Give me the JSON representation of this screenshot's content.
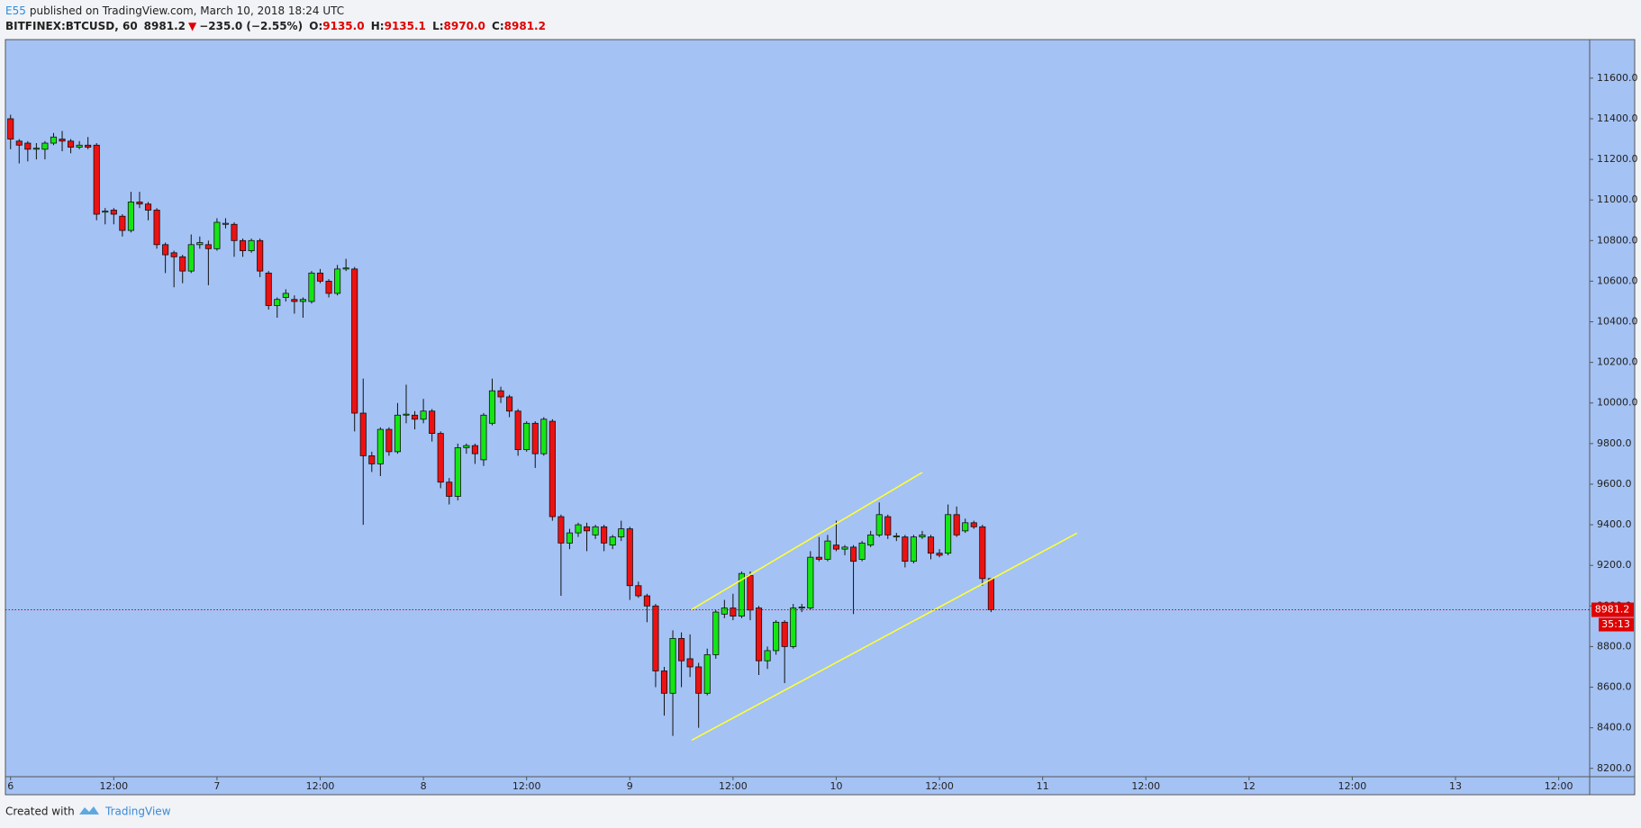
{
  "header": {
    "author": "E55",
    "published": "published on TradingView.com, March 10, 2018 18:24 UTC",
    "symbol": "BITFINEX:BTCUSD, 60",
    "last": "8981.2",
    "arrow": "▼",
    "change": "−235.0 (−2.55%)",
    "ohlc": [
      {
        "label": "O:",
        "value": "9135.0"
      },
      {
        "label": "H:",
        "value": "9135.1"
      },
      {
        "label": "L:",
        "value": "8970.0"
      },
      {
        "label": "C:",
        "value": "8981.2"
      }
    ]
  },
  "footer": {
    "created": "Created with",
    "brand": "TradingView"
  },
  "chart_data": {
    "type": "candlestick",
    "up_color": "#14e614",
    "down_color": "#ee1111",
    "background": "#a4c2f4",
    "grid": false,
    "countdown": "35:13",
    "price_line_color": "#e00000",
    "open": [
      11400,
      11290,
      11280,
      11250,
      11250,
      11280,
      11300,
      11290,
      11260,
      11270,
      11270,
      10940,
      10950,
      10920,
      10850,
      10990,
      10980,
      10950,
      10780,
      10740,
      10720,
      10650,
      10780,
      10780,
      10760,
      10880,
      10880,
      10800,
      10750,
      10800,
      10640,
      10480,
      10520,
      10510,
      10500,
      10500,
      10640,
      10600,
      10540,
      10660,
      10660,
      9950,
      9740,
      9700,
      9870,
      9760,
      9940,
      9940,
      9920,
      9960,
      9850,
      9610,
      9540,
      9780,
      9790,
      9720,
      9900,
      10060,
      10030,
      9960,
      9770,
      9900,
      9750,
      9910,
      9440,
      9310,
      9360,
      9390,
      9350,
      9390,
      9300,
      9340,
      9380,
      9100,
      9050,
      9000,
      8680,
      8570,
      8840,
      8740,
      8700,
      8570,
      8760,
      8960,
      8990,
      8950,
      9150,
      8990,
      8730,
      8780,
      8920,
      8800,
      8990,
      8990,
      9240,
      9230,
      9300,
      9280,
      9290,
      9230,
      9300,
      9350,
      9440,
      9340,
      9340,
      9220,
      9340,
      9340,
      9260,
      9260,
      9450,
      9370,
      9410,
      9390,
      9135
    ],
    "high": [
      11420,
      11300,
      11290,
      11280,
      11290,
      11330,
      11340,
      11300,
      11290,
      11310,
      11280,
      10960,
      10960,
      10930,
      11040,
      11040,
      10990,
      10960,
      10790,
      10750,
      10730,
      10830,
      10820,
      10800,
      10910,
      10910,
      10890,
      10810,
      10810,
      10810,
      10650,
      10520,
      10560,
      10530,
      10520,
      10650,
      10660,
      10610,
      10680,
      10710,
      10670,
      10120,
      9760,
      9880,
      9880,
      10000,
      10090,
      9960,
      10020,
      9970,
      9860,
      9630,
      9800,
      9800,
      9800,
      9950,
      10120,
      10080,
      10040,
      9970,
      9910,
      9910,
      9930,
      9920,
      9450,
      9380,
      9410,
      9410,
      9400,
      9400,
      9350,
      9420,
      9390,
      9120,
      9060,
      9010,
      8700,
      8880,
      8870,
      8860,
      8720,
      8790,
      8980,
      9030,
      9060,
      9170,
      9170,
      9000,
      8800,
      8930,
      8930,
      9010,
      9010,
      9270,
      9340,
      9350,
      9420,
      9300,
      9300,
      9320,
      9370,
      9510,
      9450,
      9360,
      9350,
      9350,
      9370,
      9350,
      9280,
      9500,
      9490,
      9430,
      9420,
      9400,
      9135.1
    ],
    "low": [
      11250,
      11180,
      11190,
      11200,
      11200,
      11270,
      11240,
      11230,
      11250,
      11250,
      10900,
      10880,
      10880,
      10820,
      10840,
      10960,
      10900,
      10760,
      10640,
      10570,
      10590,
      10640,
      10760,
      10580,
      10750,
      10860,
      10720,
      10720,
      10740,
      10620,
      10460,
      10420,
      10500,
      10440,
      10420,
      10490,
      10590,
      10520,
      10530,
      10650,
      9860,
      9400,
      9660,
      9640,
      9740,
      9750,
      9900,
      9870,
      9900,
      9810,
      9580,
      9500,
      9520,
      9750,
      9700,
      9690,
      9890,
      10000,
      9930,
      9740,
      9760,
      9680,
      9740,
      9420,
      9050,
      9280,
      9340,
      9270,
      9330,
      9270,
      9280,
      9320,
      9030,
      9040,
      8920,
      8600,
      8460,
      8360,
      8600,
      8650,
      8400,
      8560,
      8740,
      8940,
      8930,
      8940,
      8930,
      8660,
      8690,
      8760,
      8620,
      8790,
      8970,
      8980,
      9220,
      9220,
      9270,
      9250,
      8960,
      9220,
      9290,
      9340,
      9330,
      9320,
      9190,
      9210,
      9330,
      9230,
      9240,
      9250,
      9340,
      9360,
      9380,
      9100,
      8970
    ],
    "close": [
      11300,
      11270,
      11250,
      11255,
      11280,
      11310,
      11290,
      11260,
      11270,
      11260,
      10930,
      10945,
      10930,
      10850,
      10990,
      10980,
      10950,
      10780,
      10730,
      10720,
      10650,
      10780,
      10790,
      10760,
      10890,
      10885,
      10800,
      10750,
      10800,
      10650,
      10480,
      10510,
      10540,
      10500,
      10510,
      10640,
      10600,
      10540,
      10660,
      10665,
      9950,
      9740,
      9700,
      9870,
      9760,
      9940,
      9945,
      9920,
      9960,
      9850,
      9610,
      9540,
      9780,
      9790,
      9750,
      9940,
      10060,
      10030,
      9960,
      9770,
      9900,
      9750,
      9920,
      9440,
      9310,
      9360,
      9400,
      9370,
      9390,
      9310,
      9340,
      9380,
      9100,
      9050,
      9000,
      8680,
      8570,
      8840,
      8730,
      8700,
      8570,
      8760,
      8970,
      8990,
      8950,
      9160,
      8980,
      8730,
      8780,
      8920,
      8800,
      8990,
      8995,
      9240,
      9230,
      9320,
      9280,
      9290,
      9220,
      9310,
      9350,
      9450,
      9350,
      9345,
      9220,
      9340,
      9350,
      9260,
      9250,
      9450,
      9350,
      9410,
      9390,
      9135,
      8981.2
    ],
    "trendlines": [
      {
        "color": "#ffff33",
        "x": [
          79.2,
          106
        ],
        "y": [
          8983,
          9658
        ]
      },
      {
        "color": "#ffff33",
        "x": [
          79.2,
          124
        ],
        "y": [
          8339,
          9359
        ]
      }
    ],
    "xlim": [
      -0.6,
      183.6
    ],
    "ylim": [
      8159,
      11790
    ],
    "xticks": [
      {
        "value": 0,
        "label": "6"
      },
      {
        "value": 12,
        "label": "12:00"
      },
      {
        "value": 24,
        "label": "7"
      },
      {
        "value": 36,
        "label": "12:00"
      },
      {
        "value": 48,
        "label": "8"
      },
      {
        "value": 60,
        "label": "12:00"
      },
      {
        "value": 72,
        "label": "9"
      },
      {
        "value": 84,
        "label": "12:00"
      },
      {
        "value": 96,
        "label": "10"
      },
      {
        "value": 108,
        "label": "12:00"
      },
      {
        "value": 120,
        "label": "11"
      },
      {
        "value": 132,
        "label": "12:00"
      },
      {
        "value": 144,
        "label": "12"
      },
      {
        "value": 156,
        "label": "12:00"
      },
      {
        "value": 168,
        "label": "13"
      },
      {
        "value": 180,
        "label": "12:00"
      }
    ],
    "yticks": [
      {
        "value": 8200,
        "label": "8200.0"
      },
      {
        "value": 8400,
        "label": "8400.0"
      },
      {
        "value": 8600,
        "label": "8600.0"
      },
      {
        "value": 8800,
        "label": "8800.0"
      },
      {
        "value": 9000,
        "label": "9000.0"
      },
      {
        "value": 9200,
        "label": "9200.0"
      },
      {
        "value": 9400,
        "label": "9400.0"
      },
      {
        "value": 9600,
        "label": "9600.0"
      },
      {
        "value": 9800,
        "label": "9800.0"
      },
      {
        "value": 10000,
        "label": "10000.0"
      },
      {
        "value": 10200,
        "label": "10200.0"
      },
      {
        "value": 10400,
        "label": "10400.0"
      },
      {
        "value": 10600,
        "label": "10600.0"
      },
      {
        "value": 10800,
        "label": "10800.0"
      },
      {
        "value": 11000,
        "label": "11000.0"
      },
      {
        "value": 11200,
        "label": "11200.0"
      },
      {
        "value": 11400,
        "label": "11400.0"
      },
      {
        "value": 11600,
        "label": "11600.0"
      }
    ]
  }
}
